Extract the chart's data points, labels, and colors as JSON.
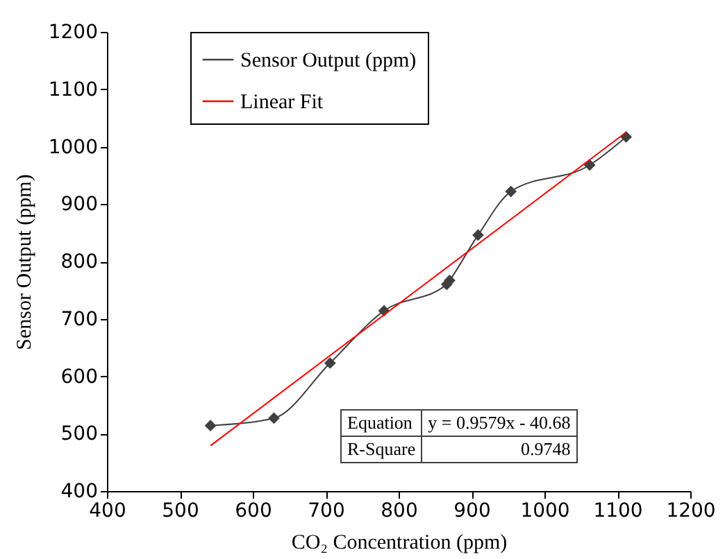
{
  "chart_data": {
    "type": "line",
    "xlabel": "CO₂ Concentration (ppm)",
    "ylabel": "Sensor Output (ppm)",
    "xlim": [
      400,
      1200
    ],
    "ylim": [
      400,
      1200
    ],
    "xticks": [
      400,
      500,
      600,
      700,
      800,
      900,
      1000,
      1100,
      1200
    ],
    "yticks": [
      400,
      500,
      600,
      700,
      800,
      900,
      1000,
      1100,
      1200
    ],
    "grid": false,
    "legend": "top left",
    "marker": "diamond",
    "series": [
      {
        "name": "Sensor Output (ppm)",
        "color": "#404040",
        "x": [
          542,
          629,
          706,
          780,
          866,
          870,
          909,
          954,
          1062,
          1112
        ],
        "values": [
          514,
          527,
          623,
          714,
          760,
          767,
          846,
          922,
          968,
          1017
        ]
      },
      {
        "name": "Linear Fit",
        "color": "#ff0000",
        "type": "line",
        "marker": "none",
        "x": [
          542,
          1112
        ],
        "values": [
          479,
          1025
        ]
      }
    ],
    "annotations": [
      "Equation",
      "y = 0.9579x - 40.68",
      "R-Square",
      "0.9748"
    ]
  }
}
